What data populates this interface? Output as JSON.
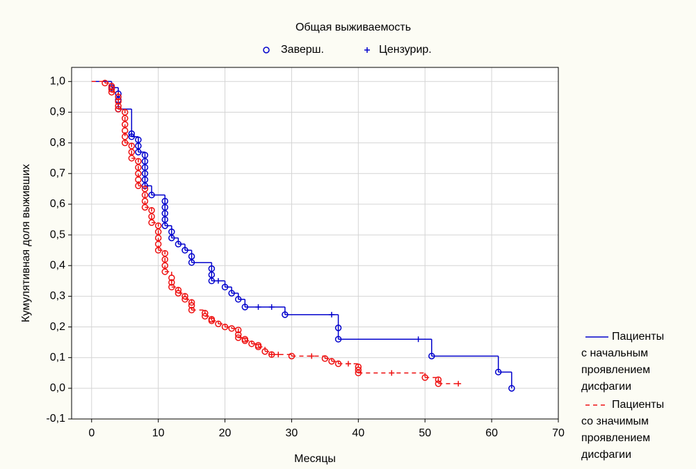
{
  "chart_data": {
    "type": "survival",
    "title": "Общая выживаемость",
    "marker_legend": {
      "completed": "Заверш.",
      "censored": "Цензурир."
    },
    "xlabel": "Месяцы",
    "ylabel": "Кумулятивная доля выживших",
    "xlim": [
      -3,
      70
    ],
    "ylim": [
      -0.1,
      1.046
    ],
    "xticks": [
      0,
      10,
      20,
      30,
      40,
      50,
      60,
      70
    ],
    "yticks": [
      {
        "value": -0.1,
        "label": "-0,1"
      },
      {
        "value": 0,
        "label": "0,0"
      },
      {
        "value": 0.1,
        "label": "0,1"
      },
      {
        "value": 0.2,
        "label": "0,2"
      },
      {
        "value": 0.3,
        "label": "0,3"
      },
      {
        "value": 0.4,
        "label": "0,4"
      },
      {
        "value": 0.5,
        "label": "0,5"
      },
      {
        "value": 0.6,
        "label": "0,6"
      },
      {
        "value": 0.7,
        "label": "0,7"
      },
      {
        "value": 0.8,
        "label": "0,8"
      },
      {
        "value": 0.9,
        "label": "0,9"
      },
      {
        "value": 1.0,
        "label": "1,0"
      }
    ],
    "grid": true,
    "series": [
      {
        "name": [
          "Пациенты",
          "с начальным",
          "проявлением",
          "дисфагии"
        ],
        "color": "#0000cc",
        "dashed": false,
        "x": [
          0,
          3,
          4,
          6,
          7,
          8,
          9,
          11,
          12,
          13,
          14,
          15,
          18,
          20,
          21,
          22,
          23,
          29,
          37,
          51,
          61,
          63
        ],
        "values": [
          1.0,
          0.98,
          0.91,
          0.82,
          0.77,
          0.66,
          0.63,
          0.53,
          0.49,
          0.47,
          0.45,
          0.41,
          0.35,
          0.33,
          0.31,
          0.29,
          0.265,
          0.24,
          0.16,
          0.105,
          0.053,
          0.0
        ],
        "completed_x": [
          3,
          4,
          4,
          4,
          6,
          6,
          7,
          7,
          7,
          8,
          8,
          8,
          8,
          8,
          8,
          9,
          11,
          11,
          11,
          11,
          11,
          12,
          12,
          13,
          14,
          15,
          15,
          18,
          18,
          18,
          20,
          21,
          22,
          23,
          29,
          37,
          37,
          51,
          61,
          63
        ],
        "completed_y": [
          0.98,
          0.96,
          0.94,
          0.91,
          0.83,
          0.82,
          0.81,
          0.79,
          0.77,
          0.76,
          0.74,
          0.72,
          0.7,
          0.68,
          0.66,
          0.63,
          0.61,
          0.59,
          0.57,
          0.55,
          0.53,
          0.51,
          0.49,
          0.47,
          0.45,
          0.43,
          0.41,
          0.39,
          0.37,
          0.35,
          0.33,
          0.31,
          0.29,
          0.265,
          0.24,
          0.197,
          0.16,
          0.105,
          0.053,
          0.0
        ],
        "censored_x": [
          19,
          25,
          27,
          36,
          49
        ],
        "censored_y": [
          0.35,
          0.265,
          0.265,
          0.24,
          0.16
        ]
      },
      {
        "name": [
          "Пациенты",
          "со значимым",
          "проявлением",
          "дисфагии"
        ],
        "color": "#ee1111",
        "dashed": true,
        "x": [
          0,
          2,
          3,
          4,
          5,
          6,
          7,
          8,
          9,
          10,
          11,
          12,
          13,
          14,
          15,
          17,
          18,
          19,
          20,
          21,
          22,
          23,
          24,
          25,
          26,
          27,
          30,
          35,
          36,
          37,
          40,
          50,
          52,
          55
        ],
        "values": [
          1.0,
          0.995,
          0.965,
          0.91,
          0.8,
          0.75,
          0.66,
          0.59,
          0.54,
          0.45,
          0.38,
          0.33,
          0.31,
          0.29,
          0.255,
          0.235,
          0.22,
          0.21,
          0.2,
          0.195,
          0.165,
          0.155,
          0.145,
          0.135,
          0.12,
          0.11,
          0.105,
          0.097,
          0.088,
          0.08,
          0.05,
          0.035,
          0.015,
          0.015
        ],
        "completed_x": [
          2,
          3,
          3,
          3,
          4,
          4,
          4,
          4,
          5,
          5,
          5,
          5,
          5,
          5,
          6,
          6,
          6,
          7,
          7,
          7,
          7,
          7,
          8,
          8,
          8,
          8,
          9,
          9,
          9,
          10,
          10,
          10,
          10,
          10,
          11,
          11,
          11,
          11,
          12,
          12,
          12,
          13,
          13,
          14,
          14,
          15,
          15,
          15,
          17,
          17,
          18,
          18,
          19,
          20,
          21,
          22,
          22,
          22,
          23,
          23,
          24,
          25,
          25,
          26,
          27,
          30,
          35,
          36,
          37,
          40,
          40,
          40,
          50,
          52,
          52
        ],
        "completed_y": [
          0.995,
          0.985,
          0.975,
          0.965,
          0.95,
          0.935,
          0.92,
          0.91,
          0.9,
          0.88,
          0.86,
          0.84,
          0.82,
          0.8,
          0.79,
          0.77,
          0.75,
          0.74,
          0.72,
          0.7,
          0.68,
          0.66,
          0.65,
          0.63,
          0.61,
          0.59,
          0.58,
          0.56,
          0.54,
          0.53,
          0.51,
          0.49,
          0.47,
          0.45,
          0.44,
          0.42,
          0.4,
          0.38,
          0.36,
          0.345,
          0.33,
          0.32,
          0.31,
          0.3,
          0.29,
          0.28,
          0.27,
          0.255,
          0.245,
          0.235,
          0.225,
          0.22,
          0.21,
          0.2,
          0.195,
          0.19,
          0.175,
          0.165,
          0.16,
          0.155,
          0.145,
          0.14,
          0.135,
          0.12,
          0.11,
          0.105,
          0.097,
          0.088,
          0.08,
          0.07,
          0.06,
          0.05,
          0.035,
          0.028,
          0.015
        ],
        "censored_x": [
          27,
          28,
          33,
          38.5,
          45,
          55
        ],
        "censored_y": [
          0.11,
          0.11,
          0.105,
          0.08,
          0.05,
          0.015
        ]
      }
    ]
  }
}
